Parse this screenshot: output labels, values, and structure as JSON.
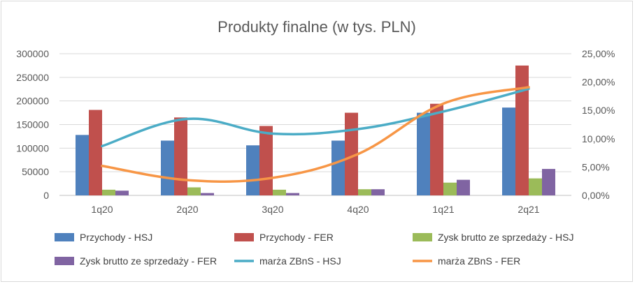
{
  "chart_data": {
    "type": "bar",
    "title": "Produkty finalne (w tys. PLN)",
    "categories": [
      "1q20",
      "2q20",
      "3q20",
      "4q20",
      "1q21",
      "2q21"
    ],
    "left_axis": {
      "min": 0,
      "max": 300000,
      "step": 50000,
      "tick_labels": [
        "0",
        "50000",
        "100000",
        "150000",
        "200000",
        "250000",
        "300000"
      ]
    },
    "right_axis": {
      "min": 0,
      "max": 0.25,
      "step": 0.05,
      "tick_labels": [
        "0,00%",
        "5,00%",
        "10,00%",
        "15,00%",
        "20,00%",
        "25,00%"
      ]
    },
    "grid": true,
    "legend_position": "bottom",
    "bar_series": [
      {
        "name": "Przychody - HSJ",
        "color": "#4f81bd",
        "values": [
          128000,
          116000,
          106000,
          116000,
          175000,
          186000
        ]
      },
      {
        "name": "Przychody - FER",
        "color": "#c0504d",
        "values": [
          181000,
          165000,
          147000,
          175000,
          194000,
          275000
        ]
      },
      {
        "name": "Zysk brutto ze sprzedaży - HSJ",
        "color": "#9bbb59",
        "values": [
          12000,
          17000,
          12000,
          13000,
          27000,
          36000
        ]
      },
      {
        "name": "Zysk brutto ze sprzedaży - FER",
        "color": "#8064a2",
        "values": [
          10000,
          5000,
          5000,
          13000,
          33000,
          56000
        ]
      }
    ],
    "line_series": [
      {
        "name": "marża ZBnS - HSJ",
        "color": "#4bacc6",
        "axis": "right",
        "values": [
          0.087,
          0.135,
          0.109,
          0.117,
          0.148,
          0.188
        ]
      },
      {
        "name": "marża ZBnS - FER",
        "color": "#f79646",
        "axis": "right",
        "values": [
          0.052,
          0.027,
          0.031,
          0.073,
          0.162,
          0.191
        ]
      }
    ]
  }
}
